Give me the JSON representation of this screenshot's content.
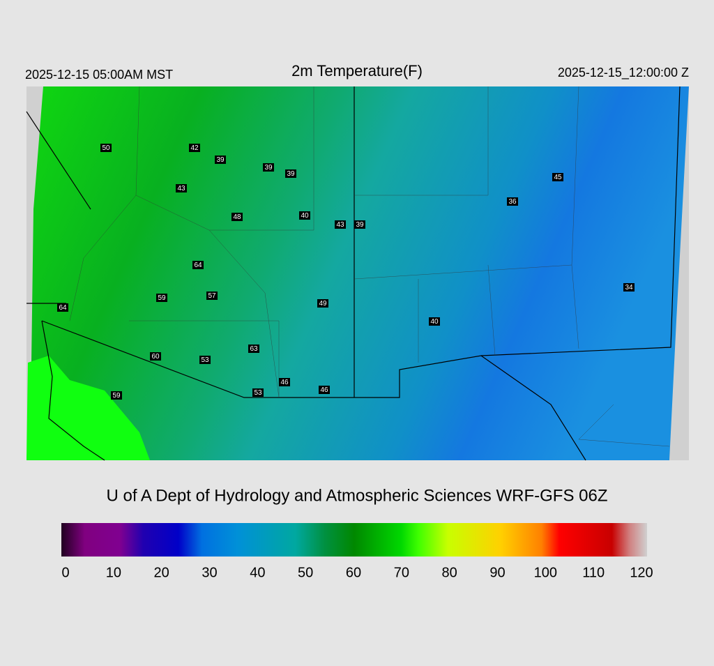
{
  "header": {
    "left": "2025-12-15 05:00AM MST",
    "title": "2m Temperature(F)",
    "right": "2025-12-15_12:00:00 Z"
  },
  "stations": [
    50,
    42,
    39,
    39,
    39,
    43,
    48,
    40,
    43,
    39,
    36,
    45,
    64,
    59,
    57,
    64,
    49,
    40,
    34,
    63,
    60,
    53,
    46,
    46,
    53,
    59
  ],
  "credit": "U of A Dept of Hydrology and Atmospheric Sciences WRF-GFS 06Z",
  "colorbar": {
    "ticks": [
      0,
      10,
      20,
      30,
      40,
      50,
      60,
      70,
      80,
      90,
      100,
      110,
      120
    ]
  }
}
